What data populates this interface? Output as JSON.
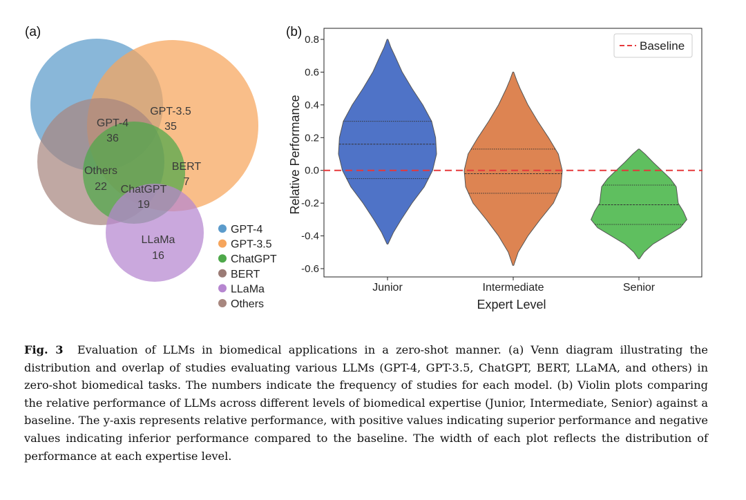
{
  "panels": {
    "a_label": "(a)",
    "b_label": "(b)"
  },
  "chart_data": [
    {
      "type": "venn",
      "sets": [
        {
          "name": "GPT-4",
          "count": "36",
          "color": "#5b9bcb"
        },
        {
          "name": "GPT-3.5",
          "count": "35",
          "color": "#f6a55c"
        },
        {
          "name": "ChatGPT",
          "count": "19",
          "color": "#4ea84a"
        },
        {
          "name": "BERT",
          "count": "7",
          "color": "#9b7b75"
        },
        {
          "name": "LLaMa",
          "count": "16",
          "color": "#b686d0"
        },
        {
          "name": "Others",
          "count": "22",
          "color": "#a8877f"
        }
      ],
      "legend": {
        "placement": "bottom-right",
        "entries": [
          {
            "label": "GPT-4",
            "color": "#5b9bcb"
          },
          {
            "label": "GPT-3.5",
            "color": "#f6a55c"
          },
          {
            "label": "ChatGPT",
            "color": "#4ea84a"
          },
          {
            "label": "BERT",
            "color": "#9b7b75"
          },
          {
            "label": "LLaMa",
            "color": "#b686d0"
          },
          {
            "label": "Others",
            "color": "#a8877f"
          }
        ]
      }
    },
    {
      "type": "violin",
      "xlabel": "Expert Level",
      "ylabel": "Relative Performance",
      "ylim": [
        -0.62,
        0.83
      ],
      "yticks": [
        0.8,
        0.6,
        0.4,
        0.2,
        0.0,
        -0.2,
        -0.4,
        -0.6
      ],
      "ytick_labels": [
        "0.8",
        "0.6",
        "0.4",
        "0.2",
        "0.0",
        "-0.2",
        "-0.4",
        "-0.6"
      ],
      "categories": [
        "Junior",
        "Intermediate",
        "Senior"
      ],
      "series": [
        {
          "category": "Junior",
          "color": "#4f73c7",
          "min": -0.45,
          "max": 0.8,
          "q1": -0.05,
          "median": 0.16,
          "q3": 0.3,
          "profile": [
            [
              -0.45,
              0.01
            ],
            [
              -0.38,
              0.12
            ],
            [
              -0.3,
              0.28
            ],
            [
              -0.2,
              0.5
            ],
            [
              -0.1,
              0.75
            ],
            [
              0.0,
              0.92
            ],
            [
              0.1,
              1.0
            ],
            [
              0.2,
              0.98
            ],
            [
              0.3,
              0.9
            ],
            [
              0.4,
              0.72
            ],
            [
              0.5,
              0.5
            ],
            [
              0.6,
              0.3
            ],
            [
              0.7,
              0.15
            ],
            [
              0.75,
              0.07
            ],
            [
              0.8,
              0.01
            ]
          ]
        },
        {
          "category": "Intermediate",
          "color": "#dd8452",
          "min": -0.58,
          "max": 0.6,
          "q1": -0.14,
          "median": -0.02,
          "q3": 0.13,
          "profile": [
            [
              -0.58,
              0.01
            ],
            [
              -0.5,
              0.1
            ],
            [
              -0.4,
              0.3
            ],
            [
              -0.3,
              0.55
            ],
            [
              -0.2,
              0.82
            ],
            [
              -0.1,
              0.97
            ],
            [
              0.0,
              1.0
            ],
            [
              0.1,
              0.92
            ],
            [
              0.2,
              0.72
            ],
            [
              0.3,
              0.5
            ],
            [
              0.4,
              0.3
            ],
            [
              0.5,
              0.14
            ],
            [
              0.55,
              0.07
            ],
            [
              0.6,
              0.01
            ]
          ]
        },
        {
          "category": "Senior",
          "color": "#5fbf5f",
          "min": -0.54,
          "max": 0.13,
          "q1": -0.33,
          "median": -0.21,
          "q3": -0.09,
          "profile": [
            [
              -0.54,
              0.01
            ],
            [
              -0.5,
              0.1
            ],
            [
              -0.45,
              0.28
            ],
            [
              -0.4,
              0.55
            ],
            [
              -0.35,
              0.82
            ],
            [
              -0.3,
              0.95
            ],
            [
              -0.25,
              0.88
            ],
            [
              -0.2,
              0.78
            ],
            [
              -0.15,
              0.76
            ],
            [
              -0.1,
              0.74
            ],
            [
              -0.05,
              0.62
            ],
            [
              0.0,
              0.45
            ],
            [
              0.05,
              0.28
            ],
            [
              0.1,
              0.12
            ],
            [
              0.13,
              0.01
            ]
          ]
        }
      ],
      "baseline": {
        "label": "Baseline",
        "value": 0.0,
        "color": "#e5383b"
      },
      "legend": {
        "placement": "top-right"
      }
    }
  ],
  "caption": {
    "prefix": "Fig. 3",
    "text": "Evaluation of LLMs in biomedical applications in a zero-shot manner. (a) Venn diagram illustrating the distribution and overlap of studies evaluating various LLMs (GPT-4, GPT-3.5, ChatGPT, BERT, LLaMA, and others) in zero-shot biomedical tasks. The numbers indicate the frequency of studies for each model. (b) Violin plots comparing the relative performance of LLMs across different levels of biomedical expertise (Junior, Intermediate, Senior) against a baseline. The y-axis represents relative performance, with positive values indicating superior performance and negative values indicating inferior performance compared to the baseline. The width of each plot reflects the distribution of performance at each expertise level."
  }
}
